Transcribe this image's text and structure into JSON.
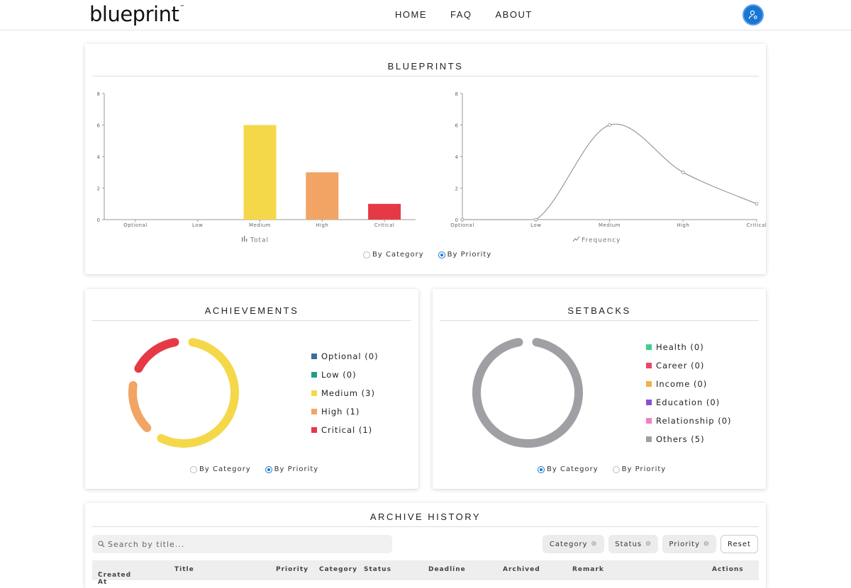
{
  "header": {
    "logo_text": "blueprint",
    "logo_tm": "™",
    "nav": [
      "HOME",
      "FAQ",
      "ABOUT"
    ],
    "user_icon": "user-settings-icon",
    "accent_color": "#1976d2"
  },
  "blueprints": {
    "title": "BLUEPRINTS",
    "bar_legend": "Total",
    "line_legend": "Frequency",
    "radio": {
      "by_category": "By Category",
      "by_priority": "By Priority",
      "selected": "By Priority"
    }
  },
  "achievements": {
    "title": "ACHIEVEMENTS",
    "legend": [
      {
        "label": "Optional (0)",
        "color": "#3d6e99"
      },
      {
        "label": "Low (0)",
        "color": "#1f9e89"
      },
      {
        "label": "Medium (3)",
        "color": "#f5d84a"
      },
      {
        "label": "High (1)",
        "color": "#f2a464"
      },
      {
        "label": "Critical (1)",
        "color": "#e63946"
      }
    ],
    "radio": {
      "by_category": "By Category",
      "by_priority": "By Priority",
      "selected": "By Priority"
    }
  },
  "setbacks": {
    "title": "SETBACKS",
    "legend": [
      {
        "label": "Health (0)",
        "color": "#3ecf8e"
      },
      {
        "label": "Career (0)",
        "color": "#e8456b"
      },
      {
        "label": "Income (0)",
        "color": "#f2b04c"
      },
      {
        "label": "Education (0)",
        "color": "#8a4fd6"
      },
      {
        "label": "Relationship (0)",
        "color": "#f07fc8"
      },
      {
        "label": "Others (5)",
        "color": "#a0a0a4"
      }
    ],
    "radio": {
      "by_category": "By Category",
      "by_priority": "By Priority",
      "selected": "By Category"
    }
  },
  "archive": {
    "title": "ARCHIVE HISTORY",
    "search_placeholder": "Search by title...",
    "filters": [
      "Category",
      "Status",
      "Priority"
    ],
    "reset_label": "Reset",
    "columns": [
      "Created At",
      "Title",
      "Priority",
      "Category",
      "Status",
      "Deadline",
      "Archived",
      "Remark",
      "Actions"
    ]
  },
  "chart_data": [
    {
      "type": "bar",
      "categories": [
        "Optional",
        "Low",
        "Medium",
        "High",
        "Critical"
      ],
      "values": [
        0,
        0,
        6,
        3,
        1
      ],
      "colors": [
        "#3d6e99",
        "#1f9e89",
        "#f5d84a",
        "#f2a464",
        "#e63946"
      ],
      "series_name": "Total",
      "ylim": [
        0,
        8
      ],
      "yticks": [
        0,
        2,
        4,
        6,
        8
      ]
    },
    {
      "type": "line",
      "categories": [
        "Optional",
        "Low",
        "Medium",
        "High",
        "Critical"
      ],
      "values": [
        0,
        0,
        6,
        3,
        1
      ],
      "series_name": "Frequency",
      "ylim": [
        0,
        8
      ],
      "yticks": [
        0,
        2,
        4,
        6,
        8
      ]
    },
    {
      "type": "pie",
      "donut": true,
      "labels": [
        "Optional",
        "Low",
        "Medium",
        "High",
        "Critical"
      ],
      "values": [
        0,
        0,
        3,
        1,
        1
      ],
      "colors": [
        "#3d6e99",
        "#1f9e89",
        "#f5d84a",
        "#f2a464",
        "#e63946"
      ]
    },
    {
      "type": "pie",
      "donut": true,
      "labels": [
        "Health",
        "Career",
        "Income",
        "Education",
        "Relationship",
        "Others"
      ],
      "values": [
        0,
        0,
        0,
        0,
        0,
        5
      ],
      "colors": [
        "#3ecf8e",
        "#e8456b",
        "#f2b04c",
        "#8a4fd6",
        "#f07fc8",
        "#a0a0a4"
      ]
    }
  ]
}
